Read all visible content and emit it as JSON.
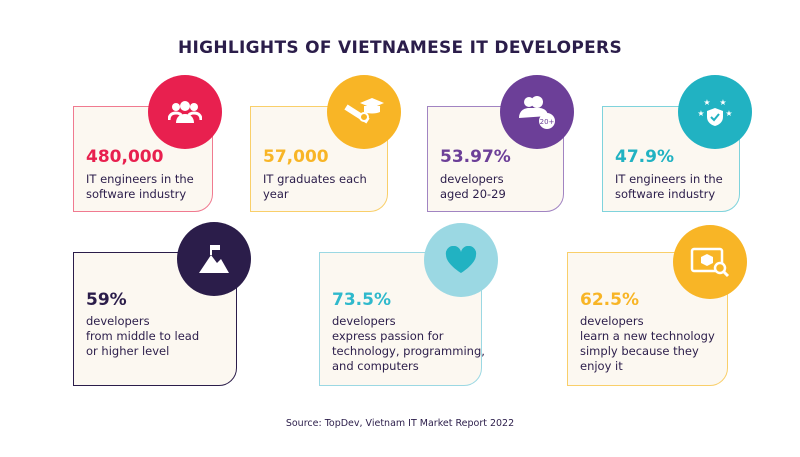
{
  "title": "HIGHLIGHTS OF VIETNAMESE IT DEVELOPERS",
  "cards": [
    {
      "value": "480,000",
      "desc": "IT engineers in the\nsoftware industry",
      "color": "#e8204f",
      "icon": "people-group-icon"
    },
    {
      "value": "57,000",
      "desc": "IT graduates each\nyear",
      "color": "#f8b526",
      "icon": "graduation-diploma-icon"
    },
    {
      "value": "53.97%",
      "desc": "developers\naged 20-29",
      "color": "#6c3f98",
      "icon": "users-age-icon",
      "badge": "20+"
    },
    {
      "value": "47.9%",
      "desc": "IT engineers in the\nsoftware industry",
      "color": "#21b2c2",
      "icon": "shield-stars-icon"
    },
    {
      "value": "59%",
      "desc": "developers\nfrom middle to lead\nor higher level",
      "color": "#2b1d4a",
      "icon": "mountain-flag-icon"
    },
    {
      "value": "73.5%",
      "desc": "developers\nexpress passion for\ntechnology, programming,\nand computers",
      "color": "#2fb9cc",
      "circle": "#9bd8e3",
      "icon": "heart-icon"
    },
    {
      "value": "62.5%",
      "desc": "developers\nlearn a new technology\nsimply because they\nenjoy it",
      "color": "#f8b526",
      "icon": "box-search-icon"
    }
  ],
  "source": "Source: TopDev, Vietnam IT Market Report 2022"
}
